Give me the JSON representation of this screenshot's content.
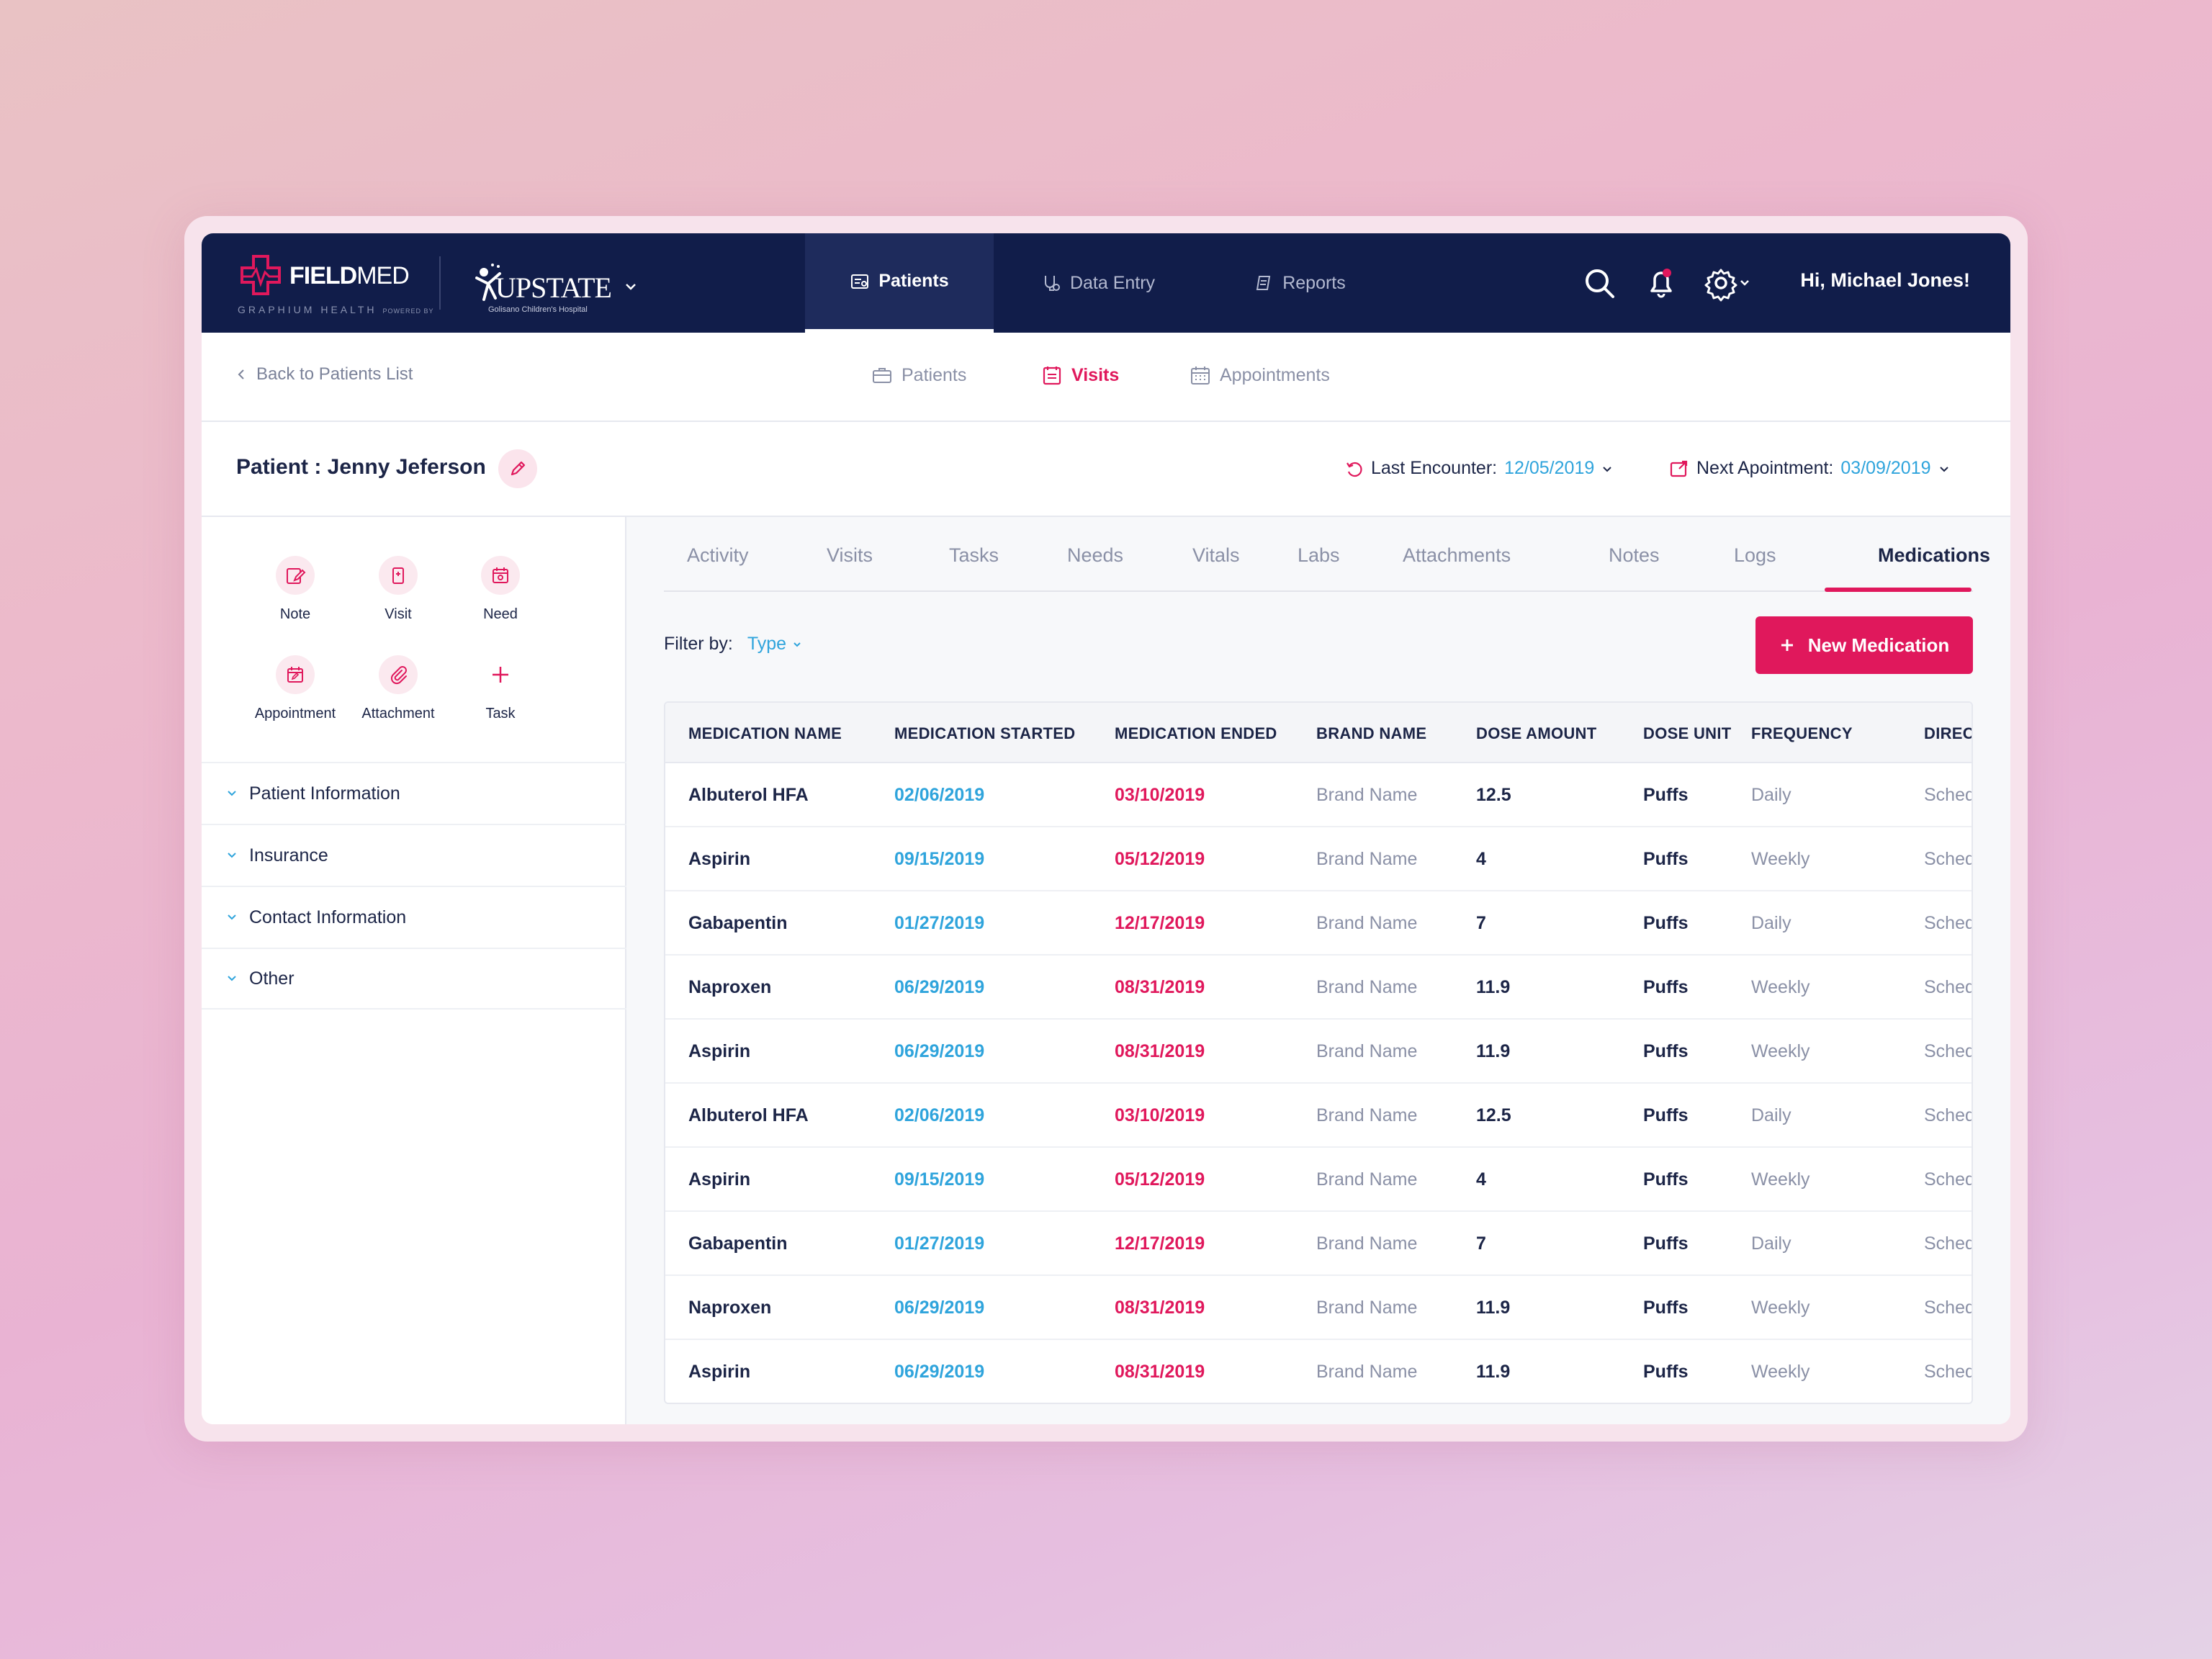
{
  "colors": {
    "navy": "#111d4a",
    "accent": "#e0185c",
    "link": "#2fa4dc"
  },
  "topbar": {
    "logo_brand_bold": "FIELD",
    "logo_brand_light": "MED",
    "logo_sub": "GRAPHIUM HEALTH",
    "logo_powered": "POWERED BY",
    "hospital_name": "UPSTATE",
    "hospital_sub": "Golisano Children's Hospital",
    "nav": [
      {
        "label": "Patients",
        "icon": "patients-icon",
        "active": true
      },
      {
        "label": "Data Entry",
        "icon": "data-entry-icon",
        "active": false
      },
      {
        "label": "Reports",
        "icon": "reports-icon",
        "active": false
      }
    ],
    "greeting": "Hi, Michael Jones!"
  },
  "subbar": {
    "back": "Back to Patients List",
    "tabs": [
      {
        "label": "Patients",
        "icon": "briefcase-icon"
      },
      {
        "label": "Visits",
        "icon": "clipboard-icon",
        "active": true
      },
      {
        "label": "Appointments",
        "icon": "calendar-icon"
      }
    ]
  },
  "patient": {
    "title": "Patient : Jenny Jeferson",
    "last_encounter_label": "Last Encounter:",
    "last_encounter_value": "12/05/2019",
    "next_appointment_label": "Next Apointment:",
    "next_appointment_value": "03/09/2019"
  },
  "sidebar": {
    "quick_actions": [
      "Note",
      "Visit",
      "Need",
      "Appointment",
      "Attachment",
      "Task"
    ],
    "sections": [
      "Patient Information",
      "Insurance",
      "Contact Information",
      "Other"
    ]
  },
  "main": {
    "tabs": [
      "Activity",
      "Visits",
      "Tasks",
      "Needs",
      "Vitals",
      "Labs",
      "Attachments",
      "Notes",
      "Logs",
      "Medications"
    ],
    "active_tab": "Medications",
    "filter_label": "Filter by:",
    "filter_value": "Type",
    "new_button": "New Medication",
    "columns": [
      "MEDICATION NAME",
      "MEDICATION STARTED",
      "MEDICATION ENDED",
      "BRAND NAME",
      "DOSE AMOUNT",
      "DOSE UNIT",
      "FREQUENCY",
      "DIRECTIONS"
    ],
    "rows": [
      [
        "Albuterol HFA",
        "02/06/2019",
        "03/10/2019",
        "Brand Name",
        "12.5",
        "Puffs",
        "Daily",
        "Scheduled"
      ],
      [
        "Aspirin",
        "09/15/2019",
        "05/12/2019",
        "Brand Name",
        "4",
        "Puffs",
        "Weekly",
        "Scheduled"
      ],
      [
        "Gabapentin",
        "01/27/2019",
        "12/17/2019",
        "Brand Name",
        "7",
        "Puffs",
        "Daily",
        "Scheduled"
      ],
      [
        "Naproxen",
        "06/29/2019",
        "08/31/2019",
        "Brand Name",
        "11.9",
        "Puffs",
        "Weekly",
        "Scheduled"
      ],
      [
        "Aspirin",
        "06/29/2019",
        "08/31/2019",
        "Brand Name",
        "11.9",
        "Puffs",
        "Weekly",
        "Scheduled"
      ],
      [
        "Albuterol HFA",
        "02/06/2019",
        "03/10/2019",
        "Brand Name",
        "12.5",
        "Puffs",
        "Daily",
        "Scheduled"
      ],
      [
        "Aspirin",
        "09/15/2019",
        "05/12/2019",
        "Brand Name",
        "4",
        "Puffs",
        "Weekly",
        "Scheduled"
      ],
      [
        "Gabapentin",
        "01/27/2019",
        "12/17/2019",
        "Brand Name",
        "7",
        "Puffs",
        "Daily",
        "Scheduled"
      ],
      [
        "Naproxen",
        "06/29/2019",
        "08/31/2019",
        "Brand Name",
        "11.9",
        "Puffs",
        "Weekly",
        "Scheduled"
      ],
      [
        "Aspirin",
        "06/29/2019",
        "08/31/2019",
        "Brand Name",
        "11.9",
        "Puffs",
        "Weekly",
        "Scheduled"
      ]
    ]
  }
}
